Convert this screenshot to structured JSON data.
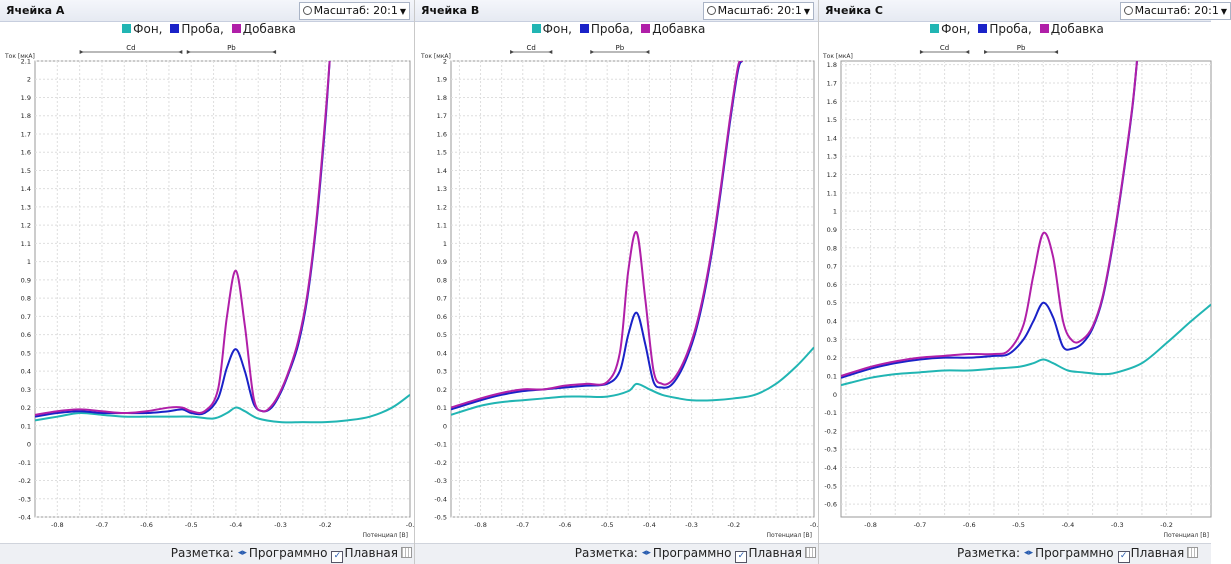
{
  "legend": [
    {
      "label": "Фон,",
      "color": "#21b5b3"
    },
    {
      "label": "Проба,",
      "color": "#1a22c8"
    },
    {
      "label": "Добавка",
      "color": "#b01fa8"
    }
  ],
  "scale_label": "Масштаб: 20:1",
  "footer": {
    "label": "Разметка:",
    "mode": "Программно",
    "smooth": "Плавная"
  },
  "ylabel": "Ток [мкА]",
  "xlabel": "Потенциал [В]",
  "markers": {
    "cd": "Cd",
    "pb": "Pb"
  },
  "chart_data": [
    {
      "panel_title": "Ячейка А",
      "type": "line",
      "xlim": [
        -0.85,
        -0.01
      ],
      "ylim": [
        -0.4,
        2.1
      ],
      "xticks": [
        "-0.8",
        "-0.7",
        "-0.6",
        "-0.5",
        "-0.4",
        "-0.3",
        "-0.2",
        "-0."
      ],
      "xtick_values": [
        -0.8,
        -0.7,
        -0.6,
        -0.5,
        -0.4,
        -0.3,
        -0.2,
        -0.01
      ],
      "yticks": [
        "2.1",
        "2",
        "1.9",
        "1.8",
        "1.7",
        "1.6",
        "1.5",
        "1.4",
        "1.3",
        "1.2",
        "1.1",
        "1",
        "0.9",
        "0.8",
        "0.7",
        "0.6",
        "0.5",
        "0.4",
        "0.3",
        "0.2",
        "0.1",
        "0",
        "-0.1",
        "-0.2",
        "-0.3",
        "-0.4"
      ],
      "ytick_values": [
        2.1,
        2,
        1.9,
        1.8,
        1.7,
        1.6,
        1.5,
        1.4,
        1.3,
        1.2,
        1.1,
        1,
        0.9,
        0.8,
        0.7,
        0.6,
        0.5,
        0.4,
        0.3,
        0.2,
        0.1,
        0,
        -0.1,
        -0.2,
        -0.3,
        -0.4
      ],
      "cd_range": [
        -0.75,
        -0.52
      ],
      "pb_range": [
        -0.51,
        -0.31
      ],
      "series": [
        {
          "name": "Фон",
          "color": "#21b5b3",
          "x": [
            -0.85,
            -0.8,
            -0.75,
            -0.7,
            -0.65,
            -0.6,
            -0.55,
            -0.5,
            -0.45,
            -0.42,
            -0.4,
            -0.38,
            -0.35,
            -0.3,
            -0.25,
            -0.2,
            -0.15,
            -0.1,
            -0.05,
            -0.01
          ],
          "y": [
            0.13,
            0.15,
            0.17,
            0.16,
            0.15,
            0.15,
            0.15,
            0.15,
            0.14,
            0.17,
            0.2,
            0.18,
            0.14,
            0.12,
            0.12,
            0.12,
            0.13,
            0.15,
            0.2,
            0.27
          ]
        },
        {
          "name": "Проба",
          "color": "#1a22c8",
          "x": [
            -0.85,
            -0.8,
            -0.75,
            -0.7,
            -0.65,
            -0.6,
            -0.55,
            -0.52,
            -0.5,
            -0.47,
            -0.44,
            -0.42,
            -0.4,
            -0.38,
            -0.36,
            -0.34,
            -0.32,
            -0.3,
            -0.28,
            -0.26,
            -0.24,
            -0.22,
            -0.2,
            -0.19
          ],
          "y": [
            0.15,
            0.17,
            0.18,
            0.17,
            0.17,
            0.17,
            0.18,
            0.19,
            0.17,
            0.17,
            0.25,
            0.42,
            0.52,
            0.4,
            0.22,
            0.18,
            0.2,
            0.28,
            0.4,
            0.55,
            0.8,
            1.2,
            1.75,
            2.1
          ]
        },
        {
          "name": "Добавка",
          "color": "#b01fa8",
          "x": [
            -0.85,
            -0.8,
            -0.75,
            -0.7,
            -0.65,
            -0.6,
            -0.55,
            -0.52,
            -0.5,
            -0.47,
            -0.44,
            -0.42,
            -0.4,
            -0.38,
            -0.36,
            -0.34,
            -0.32,
            -0.3,
            -0.28,
            -0.26,
            -0.24,
            -0.22,
            -0.2,
            -0.19
          ],
          "y": [
            0.16,
            0.18,
            0.19,
            0.18,
            0.17,
            0.18,
            0.2,
            0.2,
            0.18,
            0.18,
            0.3,
            0.7,
            0.95,
            0.65,
            0.25,
            0.18,
            0.21,
            0.29,
            0.41,
            0.57,
            0.82,
            1.22,
            1.78,
            2.1
          ]
        }
      ]
    },
    {
      "panel_title": "Ячейка В",
      "type": "line",
      "xlim": [
        -0.87,
        -0.01
      ],
      "ylim": [
        -0.5,
        2.0
      ],
      "xticks": [
        "-0.8",
        "-0.7",
        "-0.6",
        "-0.5",
        "-0.4",
        "-0.3",
        "-0.2",
        "-0."
      ],
      "xtick_values": [
        -0.8,
        -0.7,
        -0.6,
        -0.5,
        -0.4,
        -0.3,
        -0.2,
        -0.01
      ],
      "yticks": [
        "2",
        "1.9",
        "1.8",
        "1.7",
        "1.6",
        "1.5",
        "1.4",
        "1.3",
        "1.2",
        "1.1",
        "1",
        "0.9",
        "0.8",
        "0.7",
        "0.6",
        "0.5",
        "0.4",
        "0.3",
        "0.2",
        "0.1",
        "0",
        "-0.1",
        "-0.2",
        "-0.3",
        "-0.4",
        "-0.5"
      ],
      "ytick_values": [
        2,
        1.9,
        1.8,
        1.7,
        1.6,
        1.5,
        1.4,
        1.3,
        1.2,
        1.1,
        1,
        0.9,
        0.8,
        0.7,
        0.6,
        0.5,
        0.4,
        0.3,
        0.2,
        0.1,
        0,
        -0.1,
        -0.2,
        -0.3,
        -0.4,
        -0.5
      ],
      "cd_range": [
        -0.73,
        -0.63
      ],
      "pb_range": [
        -0.54,
        -0.4
      ],
      "series": [
        {
          "name": "Фон",
          "color": "#21b5b3",
          "x": [
            -0.87,
            -0.8,
            -0.75,
            -0.7,
            -0.65,
            -0.6,
            -0.55,
            -0.5,
            -0.45,
            -0.43,
            -0.4,
            -0.37,
            -0.33,
            -0.3,
            -0.25,
            -0.2,
            -0.15,
            -0.1,
            -0.05,
            -0.01
          ],
          "y": [
            0.06,
            0.11,
            0.13,
            0.14,
            0.15,
            0.16,
            0.16,
            0.16,
            0.19,
            0.23,
            0.2,
            0.17,
            0.15,
            0.14,
            0.14,
            0.15,
            0.17,
            0.23,
            0.33,
            0.43
          ]
        },
        {
          "name": "Проба",
          "color": "#1a22c8",
          "x": [
            -0.87,
            -0.8,
            -0.75,
            -0.7,
            -0.65,
            -0.6,
            -0.55,
            -0.5,
            -0.47,
            -0.45,
            -0.43,
            -0.41,
            -0.39,
            -0.37,
            -0.35,
            -0.33,
            -0.31,
            -0.29,
            -0.27,
            -0.25,
            -0.23,
            -0.21,
            -0.19,
            -0.18
          ],
          "y": [
            0.09,
            0.14,
            0.17,
            0.19,
            0.2,
            0.21,
            0.22,
            0.23,
            0.3,
            0.5,
            0.62,
            0.45,
            0.24,
            0.21,
            0.22,
            0.28,
            0.38,
            0.52,
            0.72,
            0.98,
            1.3,
            1.65,
            1.95,
            2.0
          ]
        },
        {
          "name": "Добавка",
          "color": "#b01fa8",
          "x": [
            -0.87,
            -0.8,
            -0.75,
            -0.7,
            -0.65,
            -0.6,
            -0.55,
            -0.5,
            -0.47,
            -0.45,
            -0.43,
            -0.41,
            -0.39,
            -0.37,
            -0.35,
            -0.33,
            -0.31,
            -0.29,
            -0.27,
            -0.25,
            -0.23,
            -0.21,
            -0.19,
            -0.18
          ],
          "y": [
            0.1,
            0.15,
            0.18,
            0.2,
            0.2,
            0.22,
            0.23,
            0.24,
            0.4,
            0.85,
            1.06,
            0.7,
            0.3,
            0.23,
            0.24,
            0.3,
            0.4,
            0.54,
            0.74,
            1.0,
            1.32,
            1.67,
            1.97,
            2.0
          ]
        }
      ]
    },
    {
      "panel_title": "Ячейка С",
      "type": "line",
      "xlim": [
        -0.86,
        -0.11
      ],
      "ylim": [
        -0.67,
        1.82
      ],
      "xticks": [
        "-0.8",
        "-0.7",
        "-0.6",
        "-0.5",
        "-0.4",
        "-0.3",
        "-0.2"
      ],
      "xtick_values": [
        -0.8,
        -0.7,
        -0.6,
        -0.5,
        -0.4,
        -0.3,
        -0.2
      ],
      "yticks": [
        "1.8",
        "1.7",
        "1.6",
        "1.5",
        "1.4",
        "1.3",
        "1.2",
        "1.1",
        "1",
        "0.9",
        "0.8",
        "0.7",
        "0.6",
        "0.5",
        "0.4",
        "0.3",
        "0.2",
        "0.1",
        "0",
        "-0.1",
        "-0.2",
        "-0.3",
        "-0.4",
        "-0.5",
        "-0.6"
      ],
      "ytick_values": [
        1.8,
        1.7,
        1.6,
        1.5,
        1.4,
        1.3,
        1.2,
        1.1,
        1,
        0.9,
        0.8,
        0.7,
        0.6,
        0.5,
        0.4,
        0.3,
        0.2,
        0.1,
        0,
        -0.1,
        -0.2,
        -0.3,
        -0.4,
        -0.5,
        -0.6
      ],
      "cd_range": [
        -0.7,
        -0.6
      ],
      "pb_range": [
        -0.57,
        -0.42
      ],
      "series": [
        {
          "name": "Фон",
          "color": "#21b5b3",
          "x": [
            -0.86,
            -0.8,
            -0.75,
            -0.7,
            -0.65,
            -0.6,
            -0.55,
            -0.5,
            -0.47,
            -0.45,
            -0.43,
            -0.4,
            -0.37,
            -0.33,
            -0.3,
            -0.25,
            -0.2,
            -0.15,
            -0.11
          ],
          "y": [
            0.05,
            0.09,
            0.11,
            0.12,
            0.13,
            0.13,
            0.14,
            0.15,
            0.17,
            0.19,
            0.17,
            0.13,
            0.12,
            0.11,
            0.12,
            0.17,
            0.28,
            0.4,
            0.49
          ]
        },
        {
          "name": "Проба",
          "color": "#1a22c8",
          "x": [
            -0.86,
            -0.8,
            -0.75,
            -0.7,
            -0.65,
            -0.6,
            -0.55,
            -0.52,
            -0.49,
            -0.47,
            -0.45,
            -0.43,
            -0.41,
            -0.39,
            -0.37,
            -0.35,
            -0.33,
            -0.31,
            -0.29,
            -0.27,
            -0.26
          ],
          "y": [
            0.09,
            0.14,
            0.17,
            0.19,
            0.2,
            0.2,
            0.21,
            0.22,
            0.3,
            0.4,
            0.5,
            0.42,
            0.26,
            0.25,
            0.28,
            0.36,
            0.52,
            0.8,
            1.15,
            1.55,
            1.82
          ]
        },
        {
          "name": "Добавка",
          "color": "#b01fa8",
          "x": [
            -0.86,
            -0.8,
            -0.75,
            -0.7,
            -0.65,
            -0.6,
            -0.55,
            -0.52,
            -0.49,
            -0.47,
            -0.45,
            -0.43,
            -0.41,
            -0.39,
            -0.37,
            -0.35,
            -0.33,
            -0.31,
            -0.29,
            -0.27,
            -0.26
          ],
          "y": [
            0.1,
            0.15,
            0.18,
            0.2,
            0.21,
            0.22,
            0.22,
            0.24,
            0.38,
            0.65,
            0.88,
            0.75,
            0.4,
            0.29,
            0.3,
            0.37,
            0.53,
            0.81,
            1.16,
            1.56,
            1.82
          ]
        }
      ]
    }
  ]
}
